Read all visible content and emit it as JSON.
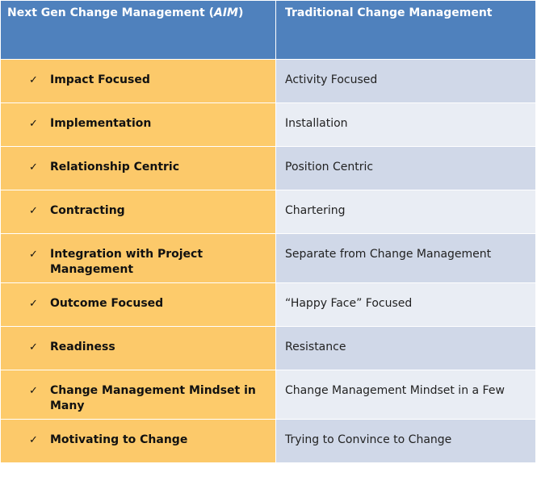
{
  "header": {
    "left_prefix": "Next Gen Change Management (",
    "left_italic": "AIM",
    "left_suffix": ")",
    "right": "Traditional Change Management"
  },
  "check_mark": "✓",
  "rows": [
    {
      "left": "Impact Focused",
      "right": "Activity Focused"
    },
    {
      "left": "Implementation",
      "right": "Installation"
    },
    {
      "left": "Relationship Centric",
      "right": "Position Centric"
    },
    {
      "left": "Contracting",
      "right": "Chartering"
    },
    {
      "left": "Integration with Project Management",
      "right": "Separate from Change Management"
    },
    {
      "left": "Outcome Focused",
      "right": "“Happy Face” Focused"
    },
    {
      "left": "Readiness",
      "right": "Resistance"
    },
    {
      "left": "Change Management Mindset in Many",
      "right": "Change Management Mindset in a Few"
    },
    {
      "left": "Motivating to Change",
      "right": "Trying to Convince to Change"
    }
  ],
  "colors": {
    "header_bg": "#4f81bd",
    "left_col_bg": "#fcc96a",
    "right_col_bg_dark": "#d0d8e8",
    "right_col_bg_light": "#e9edf4"
  }
}
